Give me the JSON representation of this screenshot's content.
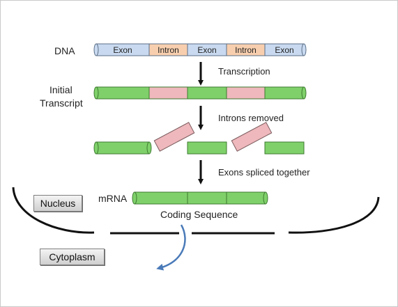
{
  "labels": {
    "dna": "DNA",
    "initial_line1": "Initial",
    "initial_line2": "Transcript",
    "mrna": "mRNA",
    "coding_sequence": "Coding Sequence"
  },
  "dna_segments": [
    {
      "label": "Exon",
      "kind": "exon"
    },
    {
      "label": "Intron",
      "kind": "intron"
    },
    {
      "label": "Exon",
      "kind": "exon"
    },
    {
      "label": "Intron",
      "kind": "intron"
    },
    {
      "label": "Exon",
      "kind": "exon"
    }
  ],
  "steps": {
    "transcription": "Transcription",
    "introns_removed": "Introns removed",
    "exons_spliced": "Exons spliced together"
  },
  "compartments": {
    "nucleus": "Nucleus",
    "cytoplasm": "Cytoplasm"
  },
  "colors": {
    "exon_dna": "#c9daf0",
    "intron_dna": "#f8cfae",
    "exon_rna": "#7fd06a",
    "intron_rna": "#eeb8bc",
    "arrow": "#111111",
    "export_arrow": "#4a7ab8",
    "membrane": "#111111"
  }
}
